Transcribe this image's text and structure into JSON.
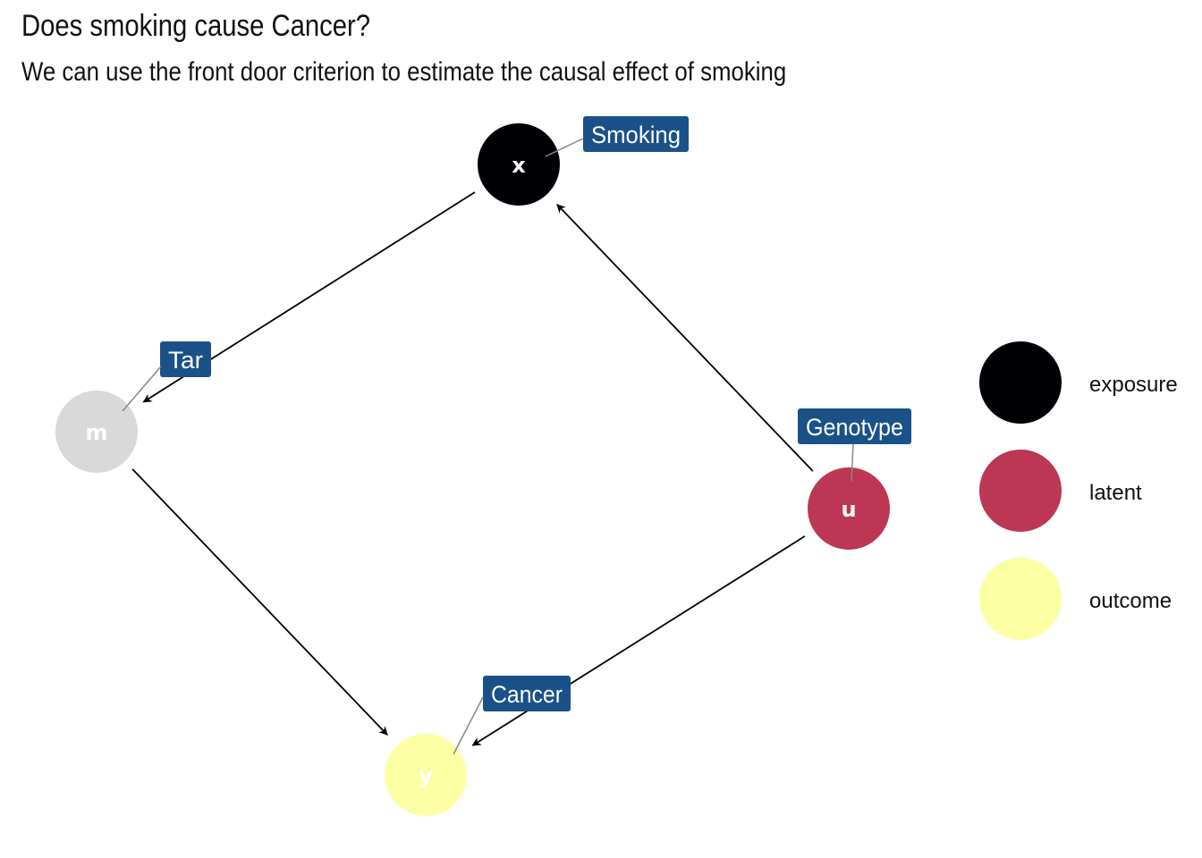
{
  "title": "Does smoking cause Cancer?",
  "subtitle": "We can use the front door criterion to estimate the causal effect of smoking",
  "colors": {
    "label_fill": "#1a5189",
    "edge": "#000000",
    "leader": "#888888",
    "exposure": "#000004",
    "latent": "#bb3754",
    "outcome": "#fcffa4",
    "unlabeled": "#d9d9d9"
  },
  "nodes": [
    {
      "id": "x",
      "name": "x",
      "label": "Smoking",
      "status": "exposure"
    },
    {
      "id": "m",
      "name": "m",
      "label": "Tar",
      "status": null
    },
    {
      "id": "u",
      "name": "u",
      "label": "Genotype",
      "status": "latent"
    },
    {
      "id": "y",
      "name": "y",
      "label": "Cancer",
      "status": "outcome"
    }
  ],
  "edges": [
    {
      "from": "x",
      "to": "m"
    },
    {
      "from": "u",
      "to": "x"
    },
    {
      "from": "m",
      "to": "y"
    },
    {
      "from": "u",
      "to": "y"
    }
  ],
  "legend": [
    {
      "status": "exposure",
      "label": "exposure"
    },
    {
      "status": "latent",
      "label": "latent"
    },
    {
      "status": "outcome",
      "label": "outcome"
    }
  ]
}
